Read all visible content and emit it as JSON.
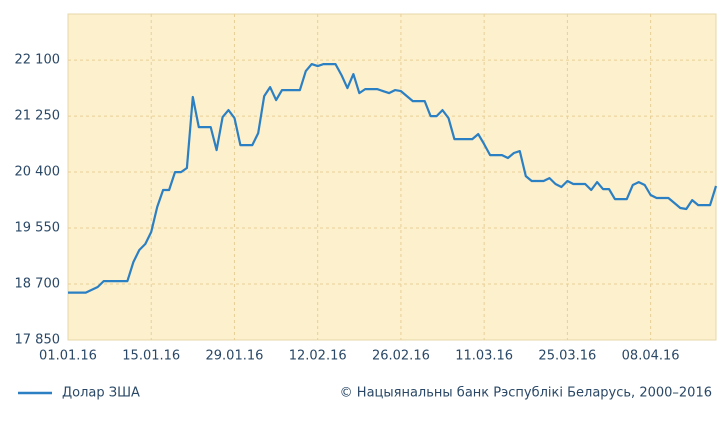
{
  "chart_data": {
    "type": "line",
    "source": "© Нацыянальны банк Рэспублікі Беларусь, 2000–2016",
    "x": [
      "01.01.16",
      "04.01.16",
      "06.01.16",
      "07.01.16",
      "11.01.16",
      "12.01.16",
      "13.01.16",
      "14.01.16",
      "15.01.16",
      "16.01.16",
      "17.01.16",
      "18.01.16",
      "19.01.16",
      "20.01.16",
      "21.01.16",
      "22.01.16",
      "23.01.16",
      "25.01.16",
      "26.01.16",
      "27.01.16",
      "28.01.16",
      "29.01.16",
      "30.01.16",
      "01.02.16",
      "02.02.16",
      "03.02.16",
      "04.02.16",
      "05.02.16",
      "06.02.16",
      "09.02.16",
      "10.02.16",
      "11.02.16",
      "12.02.16",
      "13.02.16",
      "15.02.16",
      "16.02.16",
      "17.02.16",
      "18.02.16",
      "19.02.16",
      "20.02.16",
      "22.02.16",
      "24.02.16",
      "25.02.16",
      "26.02.16",
      "28.02.16",
      "01.03.16",
      "02.03.16",
      "03.03.16",
      "04.03.16",
      "05.03.16",
      "06.03.16",
      "09.03.16",
      "10.03.16",
      "11.03.16",
      "12.03.16",
      "14.03.16",
      "15.03.16",
      "16.03.16",
      "17.03.16",
      "18.03.16",
      "19.03.16",
      "21.03.16",
      "22.03.16",
      "23.03.16",
      "24.03.16",
      "25.03.16",
      "26.03.16",
      "28.03.16",
      "29.03.16",
      "30.03.16",
      "31.03.16",
      "01.04.16",
      "02.04.16",
      "04.04.16",
      "05.04.16",
      "06.04.16",
      "07.04.16",
      "08.04.16",
      "09.04.16",
      "11.04.16",
      "12.04.16",
      "13.04.16",
      "14.04.16",
      "15.04.16",
      "16.04.16",
      "18.04.16",
      "19.04.16"
    ],
    "series": [
      {
        "name": "Долар ЗША",
        "color": "#2b7fc3",
        "values": [
          18569,
          18569,
          18655,
          18745,
          18745,
          19034,
          19216,
          19307,
          19490,
          19870,
          20127,
          20127,
          20400,
          20400,
          20461,
          21539,
          21083,
          21083,
          20734,
          21235,
          21341,
          21220,
          20810,
          20810,
          20992,
          21554,
          21690,
          21493,
          21645,
          21645,
          21933,
          22039,
          22009,
          22039,
          22039,
          21872,
          21675,
          21887,
          21599,
          21660,
          21660,
          21599,
          21645,
          21630,
          21478,
          21478,
          21250,
          21250,
          21341,
          21220,
          20901,
          20901,
          20977,
          20825,
          20658,
          20658,
          20613,
          20689,
          20719,
          20339,
          20264,
          20264,
          20309,
          20218,
          20173,
          20264,
          20218,
          20218,
          20127,
          20248,
          20142,
          20142,
          19990,
          19990,
          20203,
          20248,
          20203,
          20051,
          20006,
          20006,
          19930,
          19854,
          19839,
          19975,
          19899,
          19899,
          20188
        ]
      }
    ],
    "xlim": [
      "01.01.16",
      "19.04.16"
    ],
    "xticks": [
      "01.01.16",
      "15.01.16",
      "29.01.16",
      "12.02.16",
      "26.02.16",
      "11.03.16",
      "25.03.16",
      "08.04.16"
    ],
    "ylim": [
      17850,
      22800
    ],
    "yticks": [
      {
        "value": 17850,
        "label": "17 850"
      },
      {
        "value": 18700,
        "label": "18 700"
      },
      {
        "value": 19550,
        "label": "19 550"
      },
      {
        "value": 20400,
        "label": "20 400"
      },
      {
        "value": 21250,
        "label": "21 250"
      },
      {
        "value": 22100,
        "label": "22 100"
      }
    ],
    "grid": true
  }
}
